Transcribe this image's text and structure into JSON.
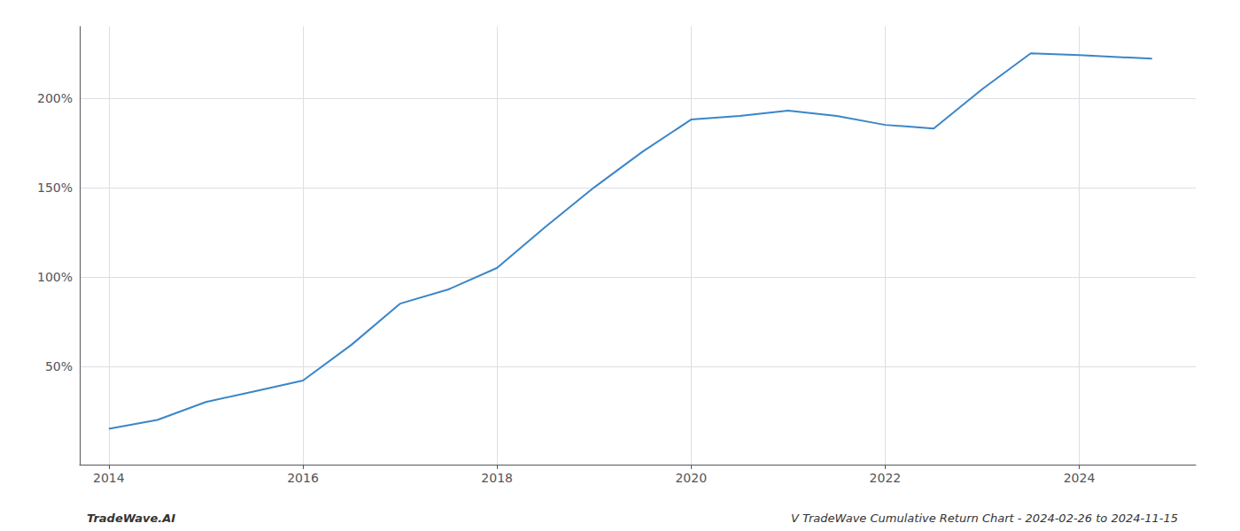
{
  "chart_data": {
    "type": "line",
    "x": [
      2014.0,
      2014.5,
      2015.0,
      2015.5,
      2016.0,
      2016.5,
      2017.0,
      2017.5,
      2018.0,
      2018.5,
      2019.0,
      2019.5,
      2020.0,
      2020.5,
      2021.0,
      2021.5,
      2022.0,
      2022.5,
      2023.0,
      2023.5,
      2024.0,
      2024.75
    ],
    "values": [
      15,
      20,
      30,
      36,
      42,
      62,
      85,
      93,
      105,
      128,
      150,
      170,
      188,
      190,
      193,
      190,
      185,
      183,
      205,
      225,
      224,
      222
    ],
    "color": "#3a86c8",
    "xlim": [
      2013.7,
      2025.2
    ],
    "ylim": [
      -5,
      240
    ],
    "xticks": [
      2014,
      2016,
      2018,
      2020,
      2022,
      2024
    ],
    "yticks": [
      {
        "value": 50,
        "label": "50%"
      },
      {
        "value": 100,
        "label": "100%"
      },
      {
        "value": 150,
        "label": "150%"
      },
      {
        "value": 200,
        "label": "200%"
      }
    ],
    "grid": true,
    "annotations": [
      "TradeWave.AI",
      "V TradeWave Cumulative Return Chart - 2024-02-26 to 2024-11-15"
    ]
  }
}
